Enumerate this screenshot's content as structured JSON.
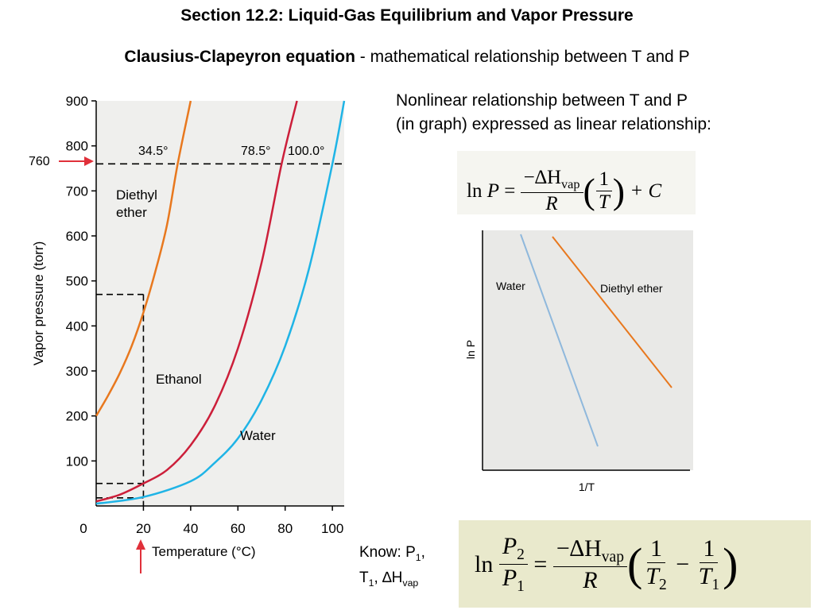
{
  "header": {
    "title": "Section 12.2:  Liquid-Gas Equilibrium and Vapor Pressure",
    "subtitle_bold": "Clausius-Clapeyron equation",
    "subtitle_rest": " - mathematical relationship between T and P"
  },
  "notes": {
    "line1": "Nonlinear relationship between T and P",
    "line2": "(in graph) expressed as linear relationship:",
    "know_line1": "Know: P",
    "know_sub1": "1",
    "know_comma": ",",
    "know_line2_T": "T",
    "know_sub2": "1",
    "know_dh": ", ∆H",
    "know_sub_vap": "vap"
  },
  "equation1": {
    "ln": "ln",
    "P": "P",
    "equals": "=",
    "numerator": "−∆H",
    "num_sub": "vap",
    "denominator": "R",
    "one": "1",
    "T": "T",
    "plus_c": "+ C"
  },
  "equation2": {
    "ln": "ln",
    "P2": "P",
    "P2_sub": "2",
    "P1": "P",
    "P1_sub": "1",
    "equals": "=",
    "numerator": "−∆H",
    "num_sub": "vap",
    "denominator": "R",
    "one_a": "1",
    "T2": "T",
    "T2_sub": "2",
    "minus": "−",
    "one_b": "1",
    "T1": "T",
    "T1_sub": "1"
  },
  "colors": {
    "ether": "#e8781e",
    "ethanol": "#cc1f3a",
    "water": "#1fb4e6",
    "water_ln": "#8fb8dc",
    "arrow": "#e0303a",
    "panel": "#f0f0ee"
  },
  "chart_data": [
    {
      "type": "line",
      "xlabel": "Temperature (°C)",
      "ylabel": "Vapor pressure (torr)",
      "xlim": [
        0,
        105
      ],
      "ylim": [
        0,
        900
      ],
      "x_ticks": [
        0,
        20,
        40,
        60,
        80,
        100
      ],
      "y_ticks": [
        100,
        200,
        300,
        400,
        500,
        600,
        700,
        800,
        900
      ],
      "series": [
        {
          "name": "Diethyl ether",
          "label": "Diethyl",
          "label2": "ether",
          "x": [
            0,
            5,
            10,
            15,
            20,
            25,
            30,
            34.5,
            40
          ],
          "y": [
            200,
            245,
            295,
            355,
            430,
            520,
            625,
            760,
            900
          ]
        },
        {
          "name": "Ethanol",
          "label": "Ethanol",
          "x": [
            0,
            10,
            20,
            30,
            40,
            50,
            60,
            70,
            78.5,
            85
          ],
          "y": [
            10,
            25,
            50,
            80,
            135,
            220,
            350,
            540,
            760,
            900
          ]
        },
        {
          "name": "Water",
          "label": "Water",
          "x": [
            0,
            20,
            40,
            50,
            60,
            70,
            80,
            90,
            100,
            105
          ],
          "y": [
            5,
            20,
            55,
            95,
            150,
            235,
            355,
            525,
            760,
            900
          ]
        }
      ],
      "annotations": [
        {
          "text": "34.5°",
          "x": 34.5,
          "y": 760
        },
        {
          "text": "78.5°",
          "x": 78.5,
          "y": 760
        },
        {
          "text": "100.0°",
          "x": 100,
          "y": 760
        },
        {
          "text": "760",
          "y": 760,
          "note": "arrow at left pointing to dashed line"
        }
      ],
      "reference_lines": {
        "dashed_h": [
          760,
          470,
          50,
          18
        ],
        "dashed_v": [
          20
        ]
      },
      "x_arrow": 20
    },
    {
      "type": "line",
      "xlabel": "1/T",
      "ylabel": "ln P",
      "series": [
        {
          "name": "Water",
          "label": "Water"
        },
        {
          "name": "Diethyl ether",
          "label": "Diethyl ether"
        }
      ]
    }
  ]
}
